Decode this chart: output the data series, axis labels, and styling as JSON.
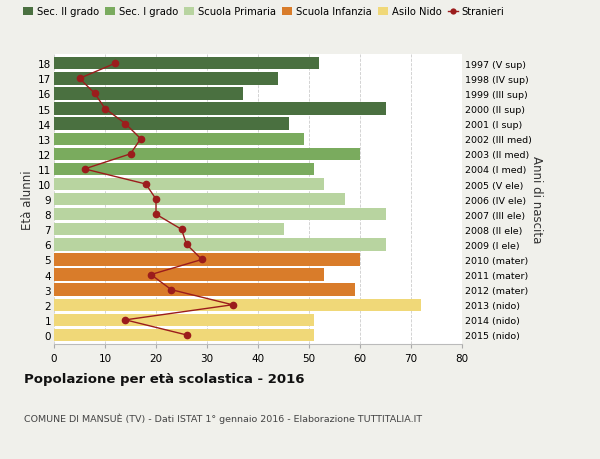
{
  "ages": [
    18,
    17,
    16,
    15,
    14,
    13,
    12,
    11,
    10,
    9,
    8,
    7,
    6,
    5,
    4,
    3,
    2,
    1,
    0
  ],
  "right_labels": [
    "1997 (V sup)",
    "1998 (IV sup)",
    "1999 (III sup)",
    "2000 (II sup)",
    "2001 (I sup)",
    "2002 (III med)",
    "2003 (II med)",
    "2004 (I med)",
    "2005 (V ele)",
    "2006 (IV ele)",
    "2007 (III ele)",
    "2008 (II ele)",
    "2009 (I ele)",
    "2010 (mater)",
    "2011 (mater)",
    "2012 (mater)",
    "2013 (nido)",
    "2014 (nido)",
    "2015 (nido)"
  ],
  "bar_values": [
    52,
    44,
    37,
    65,
    46,
    49,
    60,
    51,
    53,
    57,
    65,
    45,
    65,
    60,
    53,
    59,
    72,
    51,
    51
  ],
  "bar_colors": [
    "#4a7040",
    "#4a7040",
    "#4a7040",
    "#4a7040",
    "#4a7040",
    "#7aab5e",
    "#7aab5e",
    "#7aab5e",
    "#b8d4a0",
    "#b8d4a0",
    "#b8d4a0",
    "#b8d4a0",
    "#b8d4a0",
    "#d97c2a",
    "#d97c2a",
    "#d97c2a",
    "#f0d878",
    "#f0d878",
    "#f0d878"
  ],
  "stranieri_values": [
    12,
    5,
    8,
    10,
    14,
    17,
    15,
    6,
    18,
    20,
    20,
    25,
    26,
    29,
    19,
    23,
    35,
    14,
    26
  ],
  "legend_labels": [
    "Sec. II grado",
    "Sec. I grado",
    "Scuola Primaria",
    "Scuola Infanzia",
    "Asilo Nido",
    "Stranieri"
  ],
  "legend_colors": [
    "#4a7040",
    "#7aab5e",
    "#b8d4a0",
    "#d97c2a",
    "#f0d878",
    "#9b1c1c"
  ],
  "ylabel_left": "Età alunni",
  "ylabel_right": "Anni di nascita",
  "title_bold": "Popolazione per età scolastica - 2016",
  "subtitle": "COMUNE DI MANSUÈ (TV) - Dati ISTAT 1° gennaio 2016 - Elaborazione TUTTITALIA.IT",
  "xlim": [
    0,
    80
  ],
  "xticks": [
    0,
    10,
    20,
    30,
    40,
    50,
    60,
    70,
    80
  ],
  "bg_color": "#f0f0eb",
  "plot_bg_color": "#ffffff",
  "bar_height": 0.82,
  "grid_color": "#cccccc",
  "stranieri_color": "#9b1c1c"
}
